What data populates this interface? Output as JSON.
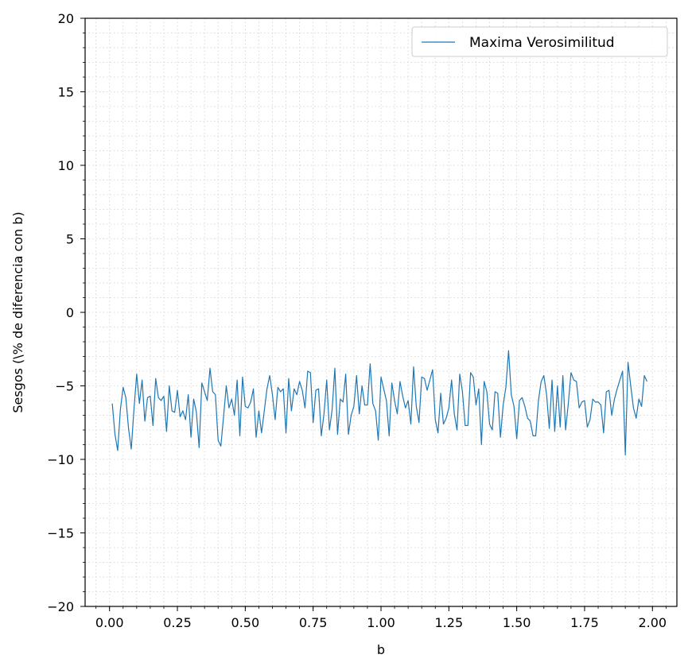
{
  "chart_data": {
    "type": "line",
    "title": "",
    "xlabel": "b",
    "ylabel": "Sesgos (\\% de diferencia con b)",
    "xlim": [
      -0.09,
      2.09
    ],
    "ylim": [
      -20,
      20
    ],
    "x_ticks": [
      "0.00",
      "0.25",
      "0.50",
      "0.75",
      "1.00",
      "1.25",
      "1.50",
      "1.75",
      "2.00"
    ],
    "y_ticks": [
      "−20",
      "−15",
      "−10",
      "−5",
      "0",
      "5",
      "10",
      "15",
      "20"
    ],
    "grid": "minor dotted",
    "legend": "top-right",
    "colors": {
      "series": "#1f77b4"
    },
    "series": [
      {
        "name": "Maxima Verosimilitud",
        "x_start": 0.01,
        "x_step": 0.01,
        "values": [
          -6.2,
          -8.3,
          -9.4,
          -6.6,
          -5.1,
          -5.8,
          -7.9,
          -9.3,
          -6.6,
          -4.2,
          -6.2,
          -4.6,
          -7.4,
          -5.8,
          -5.7,
          -7.7,
          -4.5,
          -5.8,
          -6.0,
          -5.7,
          -8.1,
          -5.0,
          -6.7,
          -6.8,
          -5.3,
          -7.1,
          -6.7,
          -7.3,
          -5.6,
          -8.5,
          -5.9,
          -6.8,
          -9.2,
          -4.8,
          -5.4,
          -6.0,
          -3.8,
          -5.4,
          -5.6,
          -8.7,
          -9.1,
          -7.1,
          -5.0,
          -6.5,
          -5.9,
          -7.0,
          -4.6,
          -8.4,
          -4.4,
          -6.4,
          -6.5,
          -6.1,
          -5.2,
          -8.5,
          -6.7,
          -8.2,
          -6.7,
          -5.2,
          -4.3,
          -5.6,
          -7.3,
          -5.1,
          -5.4,
          -5.2,
          -8.2,
          -4.5,
          -6.7,
          -5.2,
          -5.6,
          -4.7,
          -5.3,
          -6.5,
          -4.0,
          -4.1,
          -7.5,
          -5.3,
          -5.2,
          -8.4,
          -6.9,
          -4.6,
          -8.0,
          -6.6,
          -3.8,
          -8.3,
          -5.9,
          -6.1,
          -4.2,
          -8.3,
          -7.0,
          -6.4,
          -4.3,
          -6.9,
          -5.0,
          -6.3,
          -6.3,
          -3.5,
          -6.2,
          -6.7,
          -8.7,
          -4.4,
          -5.2,
          -6.0,
          -8.4,
          -4.8,
          -6.0,
          -6.9,
          -4.7,
          -5.7,
          -6.5,
          -6.0,
          -7.6,
          -3.7,
          -6.4,
          -7.5,
          -4.4,
          -4.5,
          -5.3,
          -4.6,
          -3.9,
          -7.3,
          -8.2,
          -5.5,
          -7.6,
          -7.2,
          -6.5,
          -4.6,
          -6.9,
          -8.0,
          -4.2,
          -5.4,
          -7.7,
          -7.7,
          -4.1,
          -4.4,
          -6.3,
          -5.2,
          -9.0,
          -4.7,
          -5.4,
          -7.6,
          -8.0,
          -5.4,
          -5.5,
          -8.5,
          -6.3,
          -5.1,
          -2.6,
          -5.6,
          -6.4,
          -8.6,
          -6.0,
          -5.8,
          -6.4,
          -7.2,
          -7.4,
          -8.4,
          -8.4,
          -6.0,
          -4.7,
          -4.3,
          -5.6,
          -7.9,
          -4.6,
          -8.1,
          -5.0,
          -7.8,
          -4.3,
          -8.0,
          -6.2,
          -4.1,
          -4.6,
          -4.7,
          -6.5,
          -6.1,
          -6.0,
          -7.8,
          -7.3,
          -5.9,
          -6.1,
          -6.1,
          -6.3,
          -8.2,
          -5.4,
          -5.3,
          -7.0,
          -5.9,
          -5.2,
          -4.6,
          -4.0,
          -9.7,
          -3.4,
          -5.0,
          -6.5,
          -7.2,
          -5.9,
          -6.4,
          -4.3,
          -4.7
        ]
      }
    ]
  }
}
